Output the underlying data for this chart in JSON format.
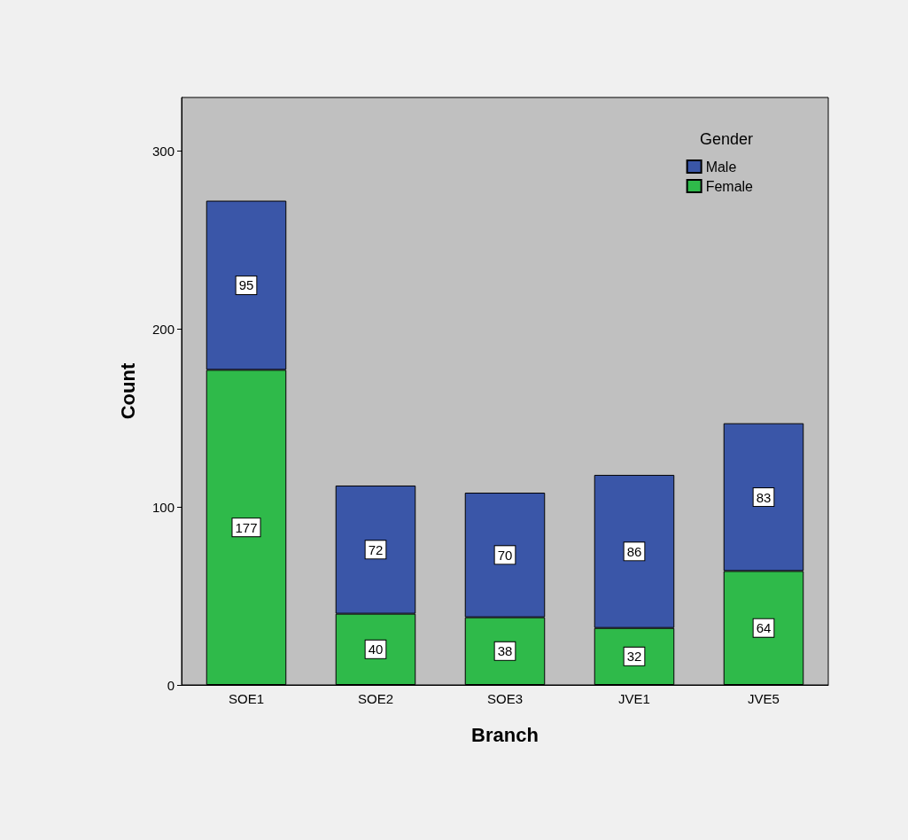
{
  "chart_data": {
    "type": "bar",
    "xlabel": "Branch",
    "ylabel": "Count",
    "legend_title": "Gender",
    "categories": [
      "SOE1",
      "SOE2",
      "SOE3",
      "JVE1",
      "JVE5"
    ],
    "series": [
      {
        "name": "Female",
        "color": "#2fba4a",
        "values": [
          177,
          40,
          38,
          32,
          64
        ]
      },
      {
        "name": "Male",
        "color": "#3a56a8",
        "values": [
          95,
          72,
          70,
          86,
          83
        ]
      }
    ],
    "stacked": true,
    "data_labels": true,
    "legend": "top right",
    "grid": false,
    "ylim": [
      0,
      330
    ],
    "yticks": [
      0,
      100,
      200,
      300
    ]
  }
}
